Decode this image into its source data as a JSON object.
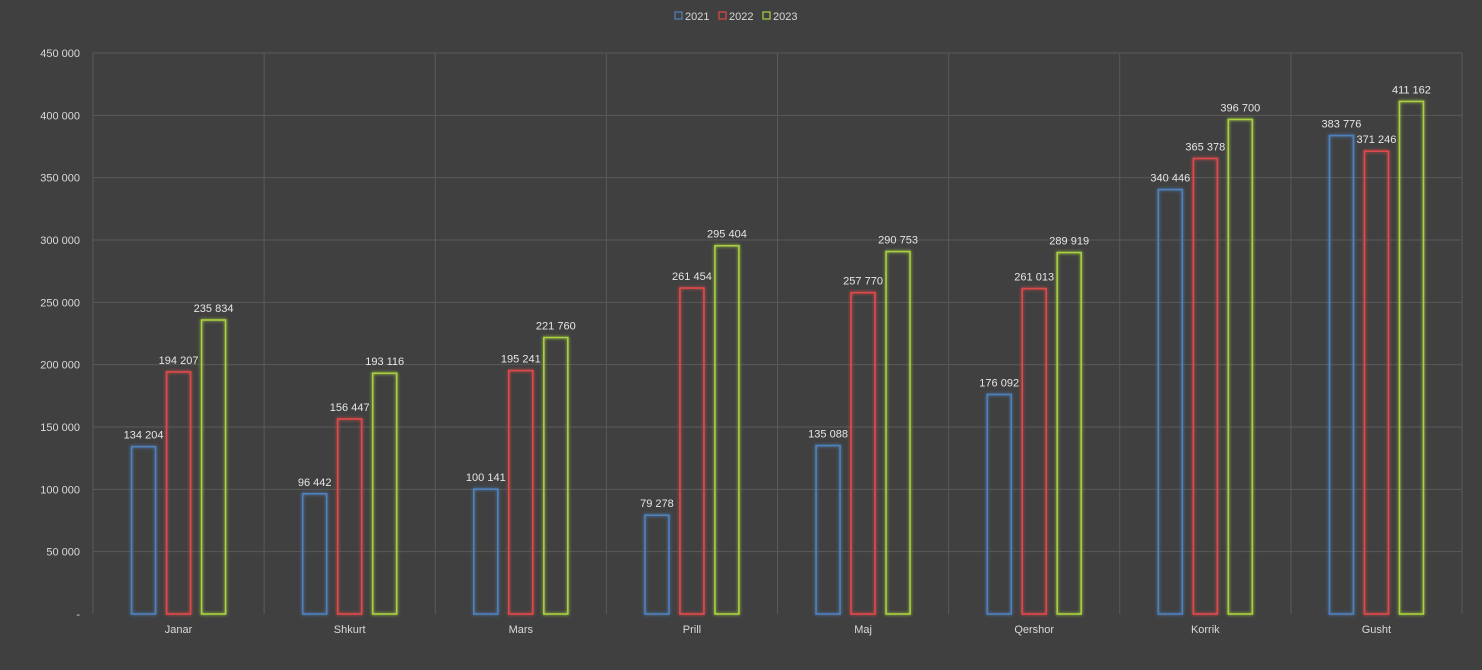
{
  "chart_data": {
    "type": "bar",
    "categories": [
      "Janar",
      "Shkurt",
      "Mars",
      "Prill",
      "Maj",
      "Qershor",
      "Korrik",
      "Gusht"
    ],
    "series": [
      {
        "name": "2021",
        "color": "#4f81bd",
        "values": [
          134204,
          96442,
          100141,
          79278,
          135088,
          176092,
          340446,
          383776
        ]
      },
      {
        "name": "2022",
        "color": "#e04848",
        "values": [
          194207,
          156447,
          195241,
          261454,
          257770,
          261013,
          365378,
          371246
        ]
      },
      {
        "name": "2023",
        "color": "#a8d040",
        "values": [
          235834,
          193116,
          221760,
          295404,
          290753,
          289919,
          396700,
          411162
        ]
      }
    ],
    "data_labels": [
      [
        "134 204",
        "96 442",
        "100 141",
        "79 278",
        "135 088",
        "176 092",
        "340 446",
        "383 776"
      ],
      [
        "194 207",
        "156 447",
        "195 241",
        "261 454",
        "257 770",
        "261 013",
        "365 378",
        "371 246"
      ],
      [
        "235 834",
        "193 116",
        "221 760",
        "295 404",
        "290 753",
        "289 919",
        "396 700",
        "411 162"
      ]
    ],
    "ylim": [
      0,
      450000
    ],
    "yticks": [
      0,
      50000,
      100000,
      150000,
      200000,
      250000,
      300000,
      350000,
      400000,
      450000
    ],
    "ytick_labels": [
      "-",
      "50 000",
      "100 000",
      "150 000",
      "200 000",
      "250 000",
      "300 000",
      "350 000",
      "400 000",
      "450 000"
    ],
    "title": "",
    "xlabel": "",
    "ylabel": "",
    "grid": true,
    "legend_position": "top-center",
    "bar_style": "outline-glow"
  }
}
